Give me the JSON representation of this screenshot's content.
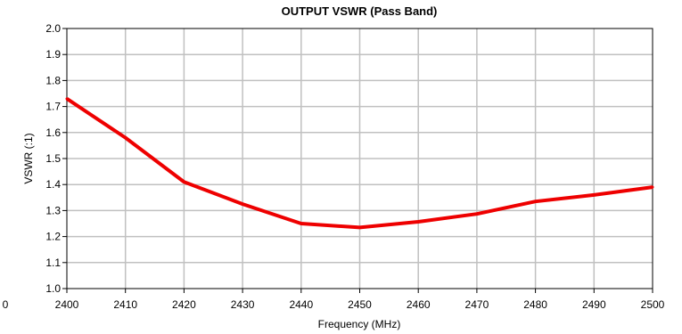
{
  "chart_data": {
    "type": "line",
    "title": "OUTPUT VSWR (Pass Band)",
    "xlabel": "Frequency (MHz)",
    "ylabel": "VSWR (:1)",
    "xlim": [
      2400,
      2500
    ],
    "ylim": [
      1.0,
      2.0
    ],
    "x_ticks": [
      "2400",
      "2410",
      "2420",
      "2430",
      "2440",
      "2450",
      "2460",
      "2470",
      "2480",
      "2490",
      "2500"
    ],
    "y_ticks": [
      "1.0",
      "1.1",
      "1.2",
      "1.3",
      "1.4",
      "1.5",
      "1.6",
      "1.7",
      "1.8",
      "1.9",
      "2.0"
    ],
    "stray_tick_label": "0",
    "grid": true,
    "series": [
      {
        "color": "#ee0000",
        "x": [
          2400,
          2410,
          2420,
          2430,
          2440,
          2450,
          2460,
          2470,
          2480,
          2490,
          2500
        ],
        "values": [
          1.73,
          1.58,
          1.41,
          1.325,
          1.25,
          1.235,
          1.257,
          1.287,
          1.335,
          1.36,
          1.39
        ]
      }
    ]
  }
}
